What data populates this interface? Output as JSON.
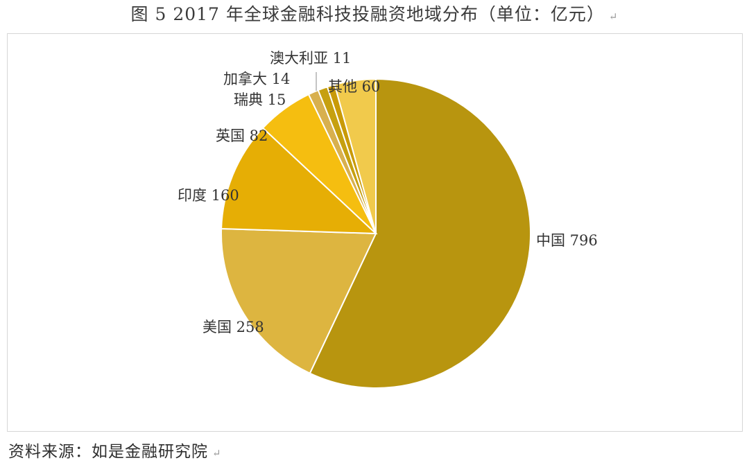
{
  "header": {
    "title": "图 5   2017 年全球金融科技投融资地域分布（单位：亿元）"
  },
  "footer": {
    "source": "资料来源：如是金融研究院"
  },
  "chart_data": {
    "type": "pie",
    "title": "图 5   2017 年全球金融科技投融资地域分布（单位：亿元）",
    "unit": "亿元",
    "slices": [
      {
        "label": "中国 796",
        "name": "中国",
        "value": 796,
        "color": "#B8950F"
      },
      {
        "label": "美国 258",
        "name": "美国",
        "value": 258,
        "color": "#DDB540"
      },
      {
        "label": "印度 160",
        "name": "印度",
        "value": 160,
        "color": "#E6AE05"
      },
      {
        "label": "英国 82",
        "name": "英国",
        "value": 82,
        "color": "#F5BE10"
      },
      {
        "label": "瑞典 15",
        "name": "瑞典",
        "value": 15,
        "color": "#D8B04E"
      },
      {
        "label": "加拿大 14",
        "name": "加拿大",
        "value": 14,
        "color": "#C6A010"
      },
      {
        "label": "澳大利亚 11",
        "name": "澳大利亚",
        "value": 11,
        "color": "#C99A08"
      },
      {
        "label": "其他 60",
        "name": "其他",
        "value": 60,
        "color": "#F1CA4C"
      }
    ],
    "start_angle_deg": 0,
    "direction": "clockwise",
    "legend": "none"
  }
}
